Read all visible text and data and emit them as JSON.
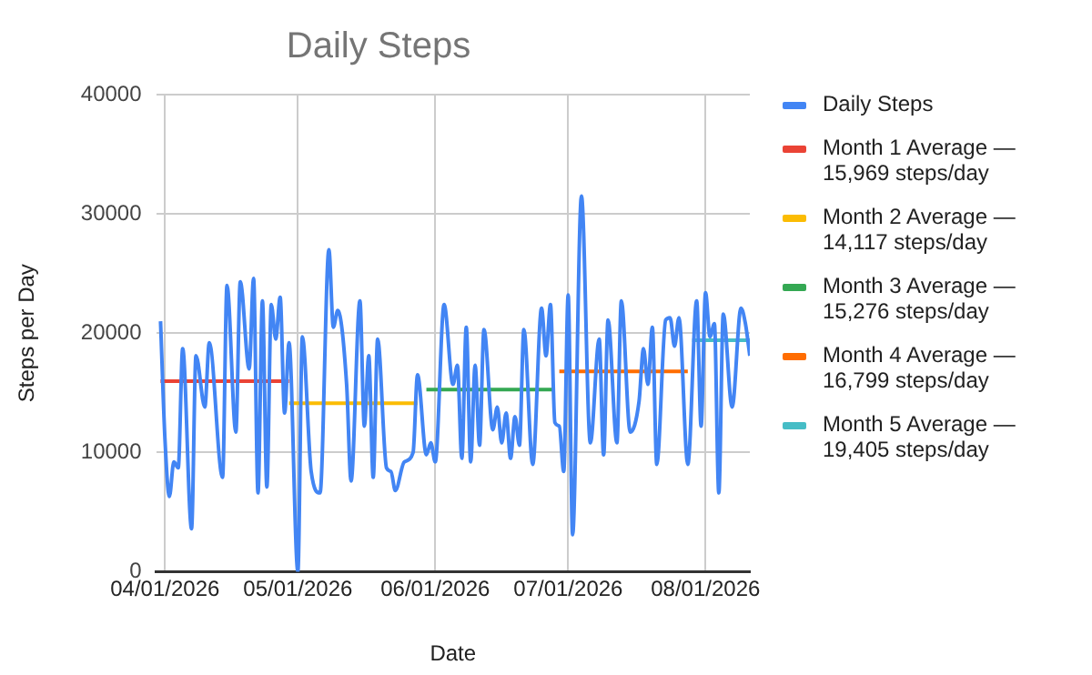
{
  "chart_data": {
    "type": "line",
    "title": "Daily Steps",
    "xlabel": "Date",
    "ylabel": "Steps per Day",
    "xlim": [
      "2026-03-30",
      "2026-08-11"
    ],
    "xticks": [
      {
        "value": "2026-04-01",
        "label": "04/01/2026"
      },
      {
        "value": "2026-05-01",
        "label": "05/01/2026"
      },
      {
        "value": "2026-06-01",
        "label": "06/01/2026"
      },
      {
        "value": "2026-07-01",
        "label": "07/01/2026"
      },
      {
        "value": "2026-08-01",
        "label": "08/01/2026"
      }
    ],
    "ylim": [
      0,
      40000
    ],
    "yticks": [
      0,
      10000,
      20000,
      30000,
      40000
    ],
    "grid": true,
    "legend": "right",
    "series": [
      {
        "name": "Daily Steps",
        "color": "#4285f4",
        "x": [
          "2026-03-31",
          "2026-04-01",
          "2026-04-02",
          "2026-04-03",
          "2026-04-04",
          "2026-04-05",
          "2026-04-07",
          "2026-04-08",
          "2026-04-10",
          "2026-04-11",
          "2026-04-14",
          "2026-04-15",
          "2026-04-17",
          "2026-04-18",
          "2026-04-20",
          "2026-04-21",
          "2026-04-22",
          "2026-04-23",
          "2026-04-24",
          "2026-04-25",
          "2026-04-26",
          "2026-04-27",
          "2026-04-28",
          "2026-04-29",
          "2026-05-01",
          "2026-05-02",
          "2026-05-04",
          "2026-05-06",
          "2026-05-08",
          "2026-05-09",
          "2026-05-10",
          "2026-05-12",
          "2026-05-13",
          "2026-05-15",
          "2026-05-16",
          "2026-05-17",
          "2026-05-18",
          "2026-05-19",
          "2026-05-21",
          "2026-05-22",
          "2026-05-23",
          "2026-05-25",
          "2026-05-27",
          "2026-05-28",
          "2026-05-30",
          "2026-05-31",
          "2026-06-01",
          "2026-06-03",
          "2026-06-05",
          "2026-06-06",
          "2026-06-07",
          "2026-06-08",
          "2026-06-09",
          "2026-06-10",
          "2026-06-11",
          "2026-06-12",
          "2026-06-14",
          "2026-06-15",
          "2026-06-16",
          "2026-06-17",
          "2026-06-18",
          "2026-06-19",
          "2026-06-20",
          "2026-06-21",
          "2026-06-23",
          "2026-06-25",
          "2026-06-26",
          "2026-06-27",
          "2026-06-28",
          "2026-06-29",
          "2026-06-30",
          "2026-07-01",
          "2026-07-02",
          "2026-07-04",
          "2026-07-06",
          "2026-07-08",
          "2026-07-09",
          "2026-07-10",
          "2026-07-12",
          "2026-07-13",
          "2026-07-15",
          "2026-07-17",
          "2026-07-18",
          "2026-07-19",
          "2026-07-20",
          "2026-07-21",
          "2026-07-23",
          "2026-07-24",
          "2026-07-25",
          "2026-07-26",
          "2026-07-28",
          "2026-07-30",
          "2026-07-31",
          "2026-08-01",
          "2026-08-02",
          "2026-08-03",
          "2026-08-04",
          "2026-08-05",
          "2026-08-07",
          "2026-08-09",
          "2026-08-10",
          "2026-08-11"
        ],
        "values": [
          21000,
          11100,
          6300,
          9200,
          8700,
          18700,
          3600,
          18100,
          13800,
          19200,
          7900,
          24000,
          11700,
          24300,
          17000,
          24600,
          6600,
          22700,
          7100,
          22400,
          19500,
          23000,
          13300,
          19200,
          0,
          19700,
          8400,
          6600,
          27000,
          20500,
          21900,
          15700,
          7600,
          22700,
          12200,
          18100,
          7900,
          19500,
          8700,
          8400,
          6800,
          9200,
          10000,
          16500,
          9800,
          10800,
          9200,
          22400,
          15700,
          17300,
          9500,
          20500,
          9200,
          17300,
          10600,
          20300,
          11900,
          13800,
          10800,
          13300,
          9500,
          13000,
          10600,
          20300,
          9000,
          22100,
          18100,
          22400,
          12500,
          12200,
          8400,
          23200,
          3100,
          31500,
          10800,
          19500,
          9800,
          21100,
          10800,
          22700,
          11700,
          14300,
          18700,
          15700,
          20500,
          9000,
          21100,
          21300,
          18900,
          21300,
          9000,
          22700,
          12200,
          23400,
          19700,
          20800,
          6600,
          21600,
          13800,
          22100,
          20800,
          18100
        ]
      },
      {
        "name": "Month 1 Average — 15,969 steps/day",
        "color": "#ea4335",
        "x": [
          "2026-03-31",
          "2026-04-29"
        ],
        "values": [
          15969,
          15969
        ]
      },
      {
        "name": "Month 2 Average — 14,117 steps/day",
        "color": "#fbbc04",
        "x": [
          "2026-04-29",
          "2026-05-28"
        ],
        "values": [
          14117,
          14117
        ]
      },
      {
        "name": "Month 3 Average — 15,276 steps/day",
        "color": "#34a853",
        "x": [
          "2026-05-30",
          "2026-06-28"
        ],
        "values": [
          15276,
          15276
        ]
      },
      {
        "name": "Month 4 Average — 16,799 steps/day",
        "color": "#ff6d01",
        "x": [
          "2026-06-29",
          "2026-07-28"
        ],
        "values": [
          16799,
          16799
        ]
      },
      {
        "name": "Month 5 Average — 19,405 steps/day",
        "color": "#46bdc6",
        "x": [
          "2026-07-29",
          "2026-08-11"
        ],
        "values": [
          19405,
          19405
        ]
      }
    ]
  }
}
